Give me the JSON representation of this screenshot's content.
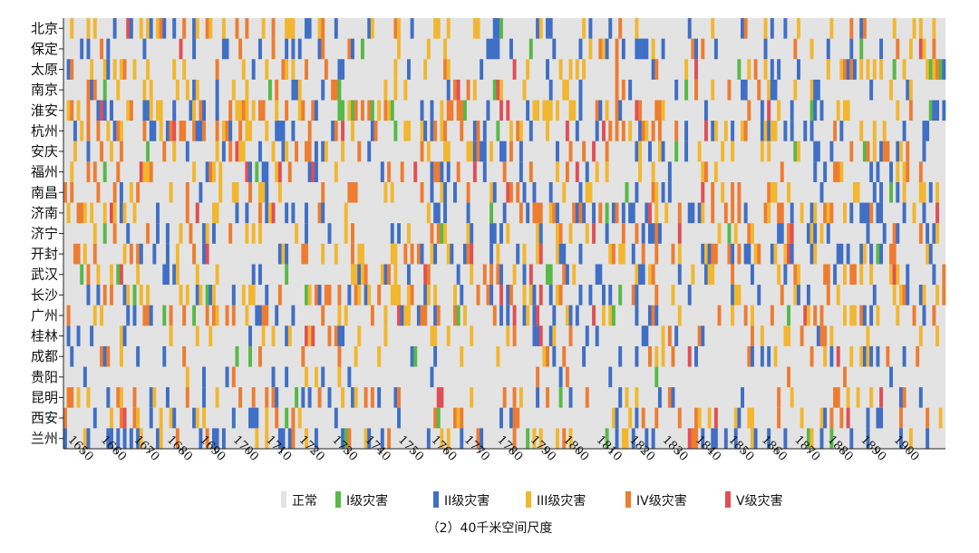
{
  "chart_data": {
    "type": "heatmap",
    "caption": "（2）40千米空间尺度",
    "rows": [
      "北京",
      "保定",
      "太原",
      "南京",
      "淮安",
      "杭州",
      "安庆",
      "福州",
      "南昌",
      "济南",
      "济宁",
      "开封",
      "武汉",
      "长沙",
      "广州",
      "桂林",
      "成都",
      "贵阳",
      "昆明",
      "西安",
      "兰州"
    ],
    "x_ticks": [
      "1650",
      "1660",
      "1670",
      "1680",
      "1690",
      "1700",
      "1710",
      "1720",
      "1730",
      "1740",
      "1750",
      "1760",
      "1770",
      "1780",
      "1790",
      "1800",
      "1810",
      "1820",
      "1830",
      "1840",
      "1850",
      "1860",
      "1870",
      "1880",
      "1890",
      "1900"
    ],
    "x_range": [
      1644,
      1911
    ],
    "levels": [
      {
        "key": 0,
        "label": "正常",
        "color": "#e3e3e3"
      },
      {
        "key": 1,
        "label": "I级灾害",
        "color": "#57b947"
      },
      {
        "key": 2,
        "label": "II级灾害",
        "color": "#3f6fc6"
      },
      {
        "key": 3,
        "label": "III级灾害",
        "color": "#f2b72f"
      },
      {
        "key": 4,
        "label": "IV级灾害",
        "color": "#ee7c31"
      },
      {
        "key": 5,
        "label": "V级灾害",
        "color": "#e04f55"
      }
    ],
    "grid": false,
    "legend_position": "bottom"
  }
}
